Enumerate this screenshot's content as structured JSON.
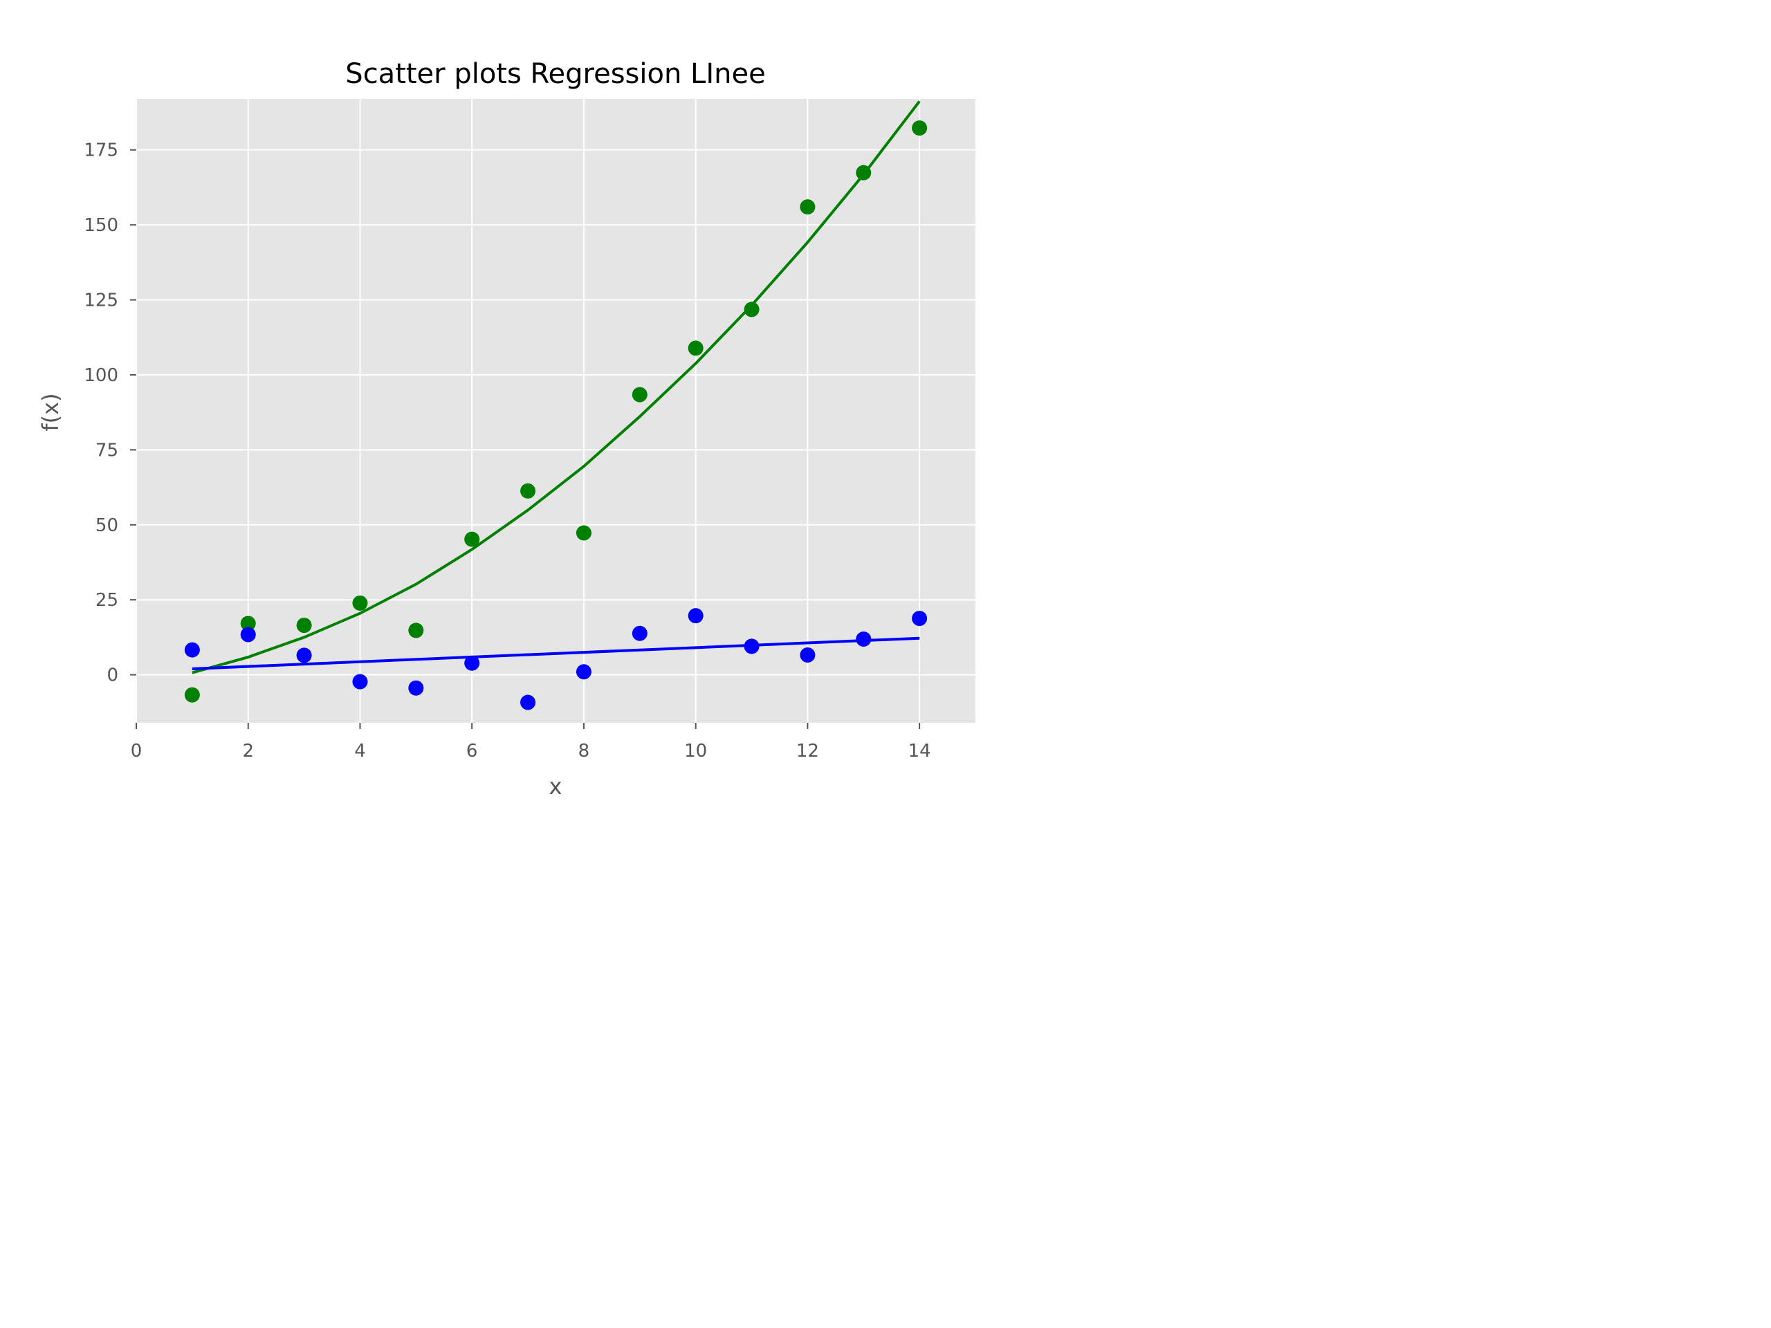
{
  "chart_data": {
    "type": "scatter",
    "title": "Scatter plots Regression LInee",
    "xlabel": "x",
    "ylabel": "f(x)",
    "xlim": [
      0,
      15
    ],
    "ylim": [
      -16,
      192
    ],
    "xticks": [
      0,
      2,
      4,
      6,
      8,
      10,
      12,
      14
    ],
    "yticks": [
      0,
      25,
      50,
      75,
      100,
      125,
      150,
      175
    ],
    "grid": true,
    "background": "#e5e5e5",
    "series": [
      {
        "kind": "points",
        "color": "#008000",
        "x": [
          1,
          2,
          3,
          4,
          5,
          6,
          7,
          8,
          9,
          10,
          11,
          12,
          13,
          14
        ],
        "y": [
          -6.7,
          17.1,
          16.5,
          23.9,
          14.8,
          45.2,
          61.3,
          47.3,
          93.4,
          108.9,
          121.8,
          156.0,
          167.4,
          182.3
        ]
      },
      {
        "kind": "points",
        "color": "#0000ff",
        "x": [
          1,
          2,
          3,
          4,
          5,
          6,
          7,
          8,
          9,
          10,
          11,
          12,
          13,
          14
        ],
        "y": [
          8.3,
          13.4,
          6.5,
          -2.3,
          -4.4,
          3.9,
          -9.2,
          1.0,
          13.8,
          19.7,
          9.5,
          6.6,
          11.9,
          18.8
        ]
      },
      {
        "kind": "line",
        "color": "#008000",
        "x": [
          1,
          2,
          3,
          4,
          5,
          6,
          7,
          8,
          9,
          10,
          11,
          12,
          13,
          14
        ],
        "y": [
          0.7,
          5.9,
          12.5,
          20.5,
          30.2,
          41.8,
          54.9,
          69.5,
          86.1,
          103.8,
          123.2,
          144.2,
          166.8,
          191.2
        ]
      },
      {
        "kind": "line",
        "color": "#0000ff",
        "x": [
          1,
          14
        ],
        "y": [
          2.0,
          12.2
        ]
      }
    ]
  }
}
